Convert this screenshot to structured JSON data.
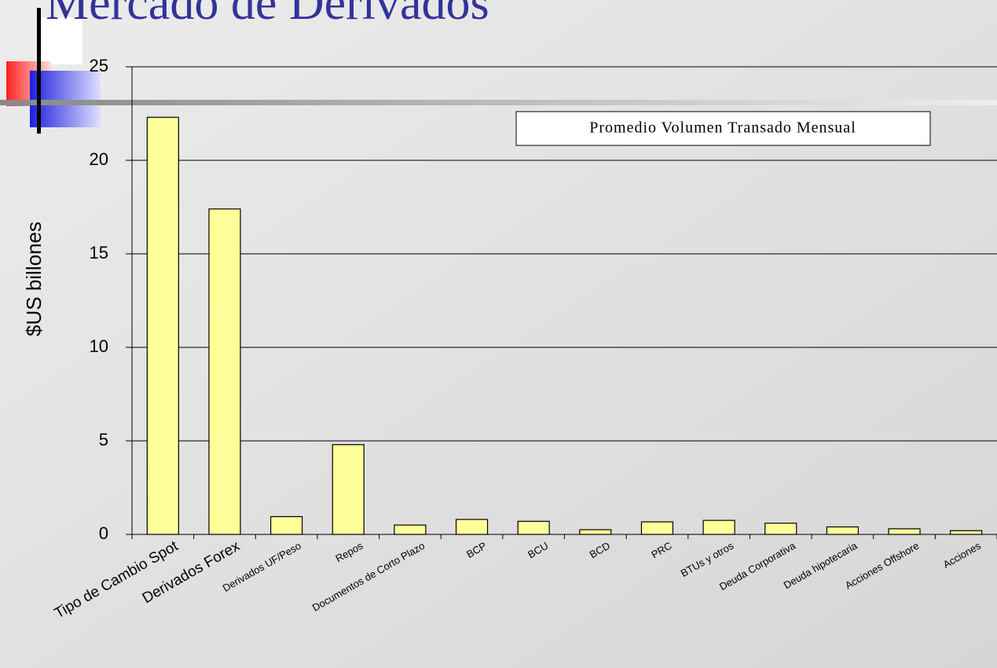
{
  "chart_data": {
    "type": "bar",
    "title": "Mercado de Derivados",
    "y_label": "$US billones",
    "legend": "Promedio Volumen Transado Mensual",
    "categories": [
      "Tipo de Cambio Spot",
      "Derivados Forex",
      "Derivados UF/Peso",
      "Repos",
      "Documentos de Corto Plazo",
      "BCP",
      "BCU",
      "BCD",
      "PRC",
      "BTUs y otros",
      "Deuda Corporativa",
      "Deuda hipotecaria",
      "Acciones Offshore",
      "Acciones"
    ],
    "values": [
      22.3,
      17.4,
      0.95,
      4.8,
      0.5,
      0.8,
      0.7,
      0.25,
      0.67,
      0.75,
      0.6,
      0.4,
      0.3,
      0.2
    ],
    "color": "#ffff99",
    "ylim": [
      0,
      25
    ],
    "yticks": [
      0,
      5,
      10,
      15,
      20,
      25
    ],
    "grid": true
  }
}
